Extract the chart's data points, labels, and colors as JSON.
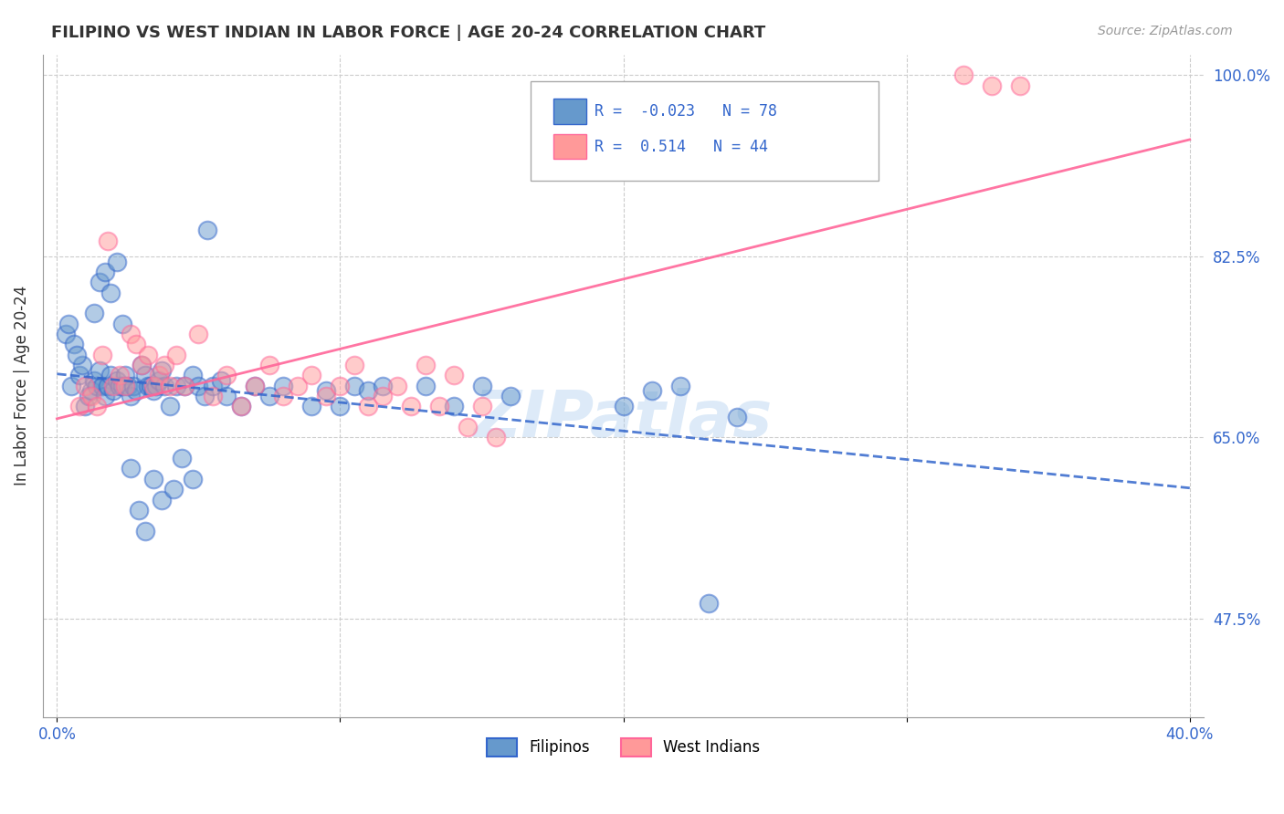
{
  "title": "FILIPINO VS WEST INDIAN IN LABOR FORCE | AGE 20-24 CORRELATION CHART",
  "source": "Source: ZipAtlas.com",
  "xlabel": "",
  "ylabel": "In Labor Force | Age 20-24",
  "xlim": [
    0.0,
    0.4
  ],
  "ylim": [
    0.38,
    1.02
  ],
  "xticks": [
    0.0,
    0.05,
    0.1,
    0.15,
    0.2,
    0.25,
    0.3,
    0.35,
    0.4
  ],
  "xticklabels": [
    "0.0%",
    "",
    "",
    "",
    "",
    "",
    "",
    "",
    "40.0%"
  ],
  "yticks_right": [
    1.0,
    0.825,
    0.65,
    0.475
  ],
  "yticklabels_right": [
    "100.0%",
    "82.5%",
    "65.0%",
    "47.5%"
  ],
  "R_filipino": -0.023,
  "N_filipino": 78,
  "R_westindian": 0.514,
  "N_westindian": 44,
  "filipino_color": "#6699CC",
  "westindian_color": "#FF9999",
  "filipino_line_color": "#3366CC",
  "westindian_line_color": "#FF6699",
  "watermark": "ZIPatlas",
  "watermark_color": "#aaccee",
  "legend_labels": [
    "Filipinos",
    "West Indians"
  ],
  "filipino_x": [
    0.005,
    0.008,
    0.009,
    0.01,
    0.011,
    0.012,
    0.013,
    0.014,
    0.015,
    0.016,
    0.017,
    0.018,
    0.019,
    0.02,
    0.021,
    0.022,
    0.023,
    0.024,
    0.025,
    0.026,
    0.027,
    0.028,
    0.03,
    0.031,
    0.032,
    0.033,
    0.034,
    0.035,
    0.036,
    0.037,
    0.038,
    0.04,
    0.042,
    0.045,
    0.048,
    0.05,
    0.052,
    0.055,
    0.058,
    0.06,
    0.065,
    0.07,
    0.075,
    0.08,
    0.09,
    0.095,
    0.1,
    0.105,
    0.11,
    0.115,
    0.003,
    0.004,
    0.006,
    0.007,
    0.013,
    0.015,
    0.017,
    0.019,
    0.021,
    0.023,
    0.026,
    0.029,
    0.031,
    0.034,
    0.037,
    0.041,
    0.044,
    0.048,
    0.053,
    0.13,
    0.14,
    0.15,
    0.16,
    0.2,
    0.21,
    0.22,
    0.23,
    0.24
  ],
  "filipino_y": [
    0.7,
    0.71,
    0.72,
    0.68,
    0.69,
    0.695,
    0.705,
    0.7,
    0.715,
    0.7,
    0.69,
    0.7,
    0.71,
    0.695,
    0.705,
    0.7,
    0.7,
    0.71,
    0.7,
    0.69,
    0.7,
    0.695,
    0.72,
    0.71,
    0.7,
    0.7,
    0.695,
    0.7,
    0.705,
    0.715,
    0.7,
    0.68,
    0.7,
    0.7,
    0.71,
    0.7,
    0.69,
    0.7,
    0.705,
    0.69,
    0.68,
    0.7,
    0.69,
    0.7,
    0.68,
    0.695,
    0.68,
    0.7,
    0.695,
    0.7,
    0.75,
    0.76,
    0.74,
    0.73,
    0.77,
    0.8,
    0.81,
    0.79,
    0.82,
    0.76,
    0.62,
    0.58,
    0.56,
    0.61,
    0.59,
    0.6,
    0.63,
    0.61,
    0.85,
    0.7,
    0.68,
    0.7,
    0.69,
    0.68,
    0.695,
    0.7,
    0.49,
    0.67
  ],
  "westindian_x": [
    0.008,
    0.01,
    0.012,
    0.014,
    0.016,
    0.018,
    0.02,
    0.022,
    0.024,
    0.026,
    0.028,
    0.03,
    0.032,
    0.034,
    0.036,
    0.038,
    0.04,
    0.042,
    0.045,
    0.05,
    0.055,
    0.06,
    0.065,
    0.07,
    0.075,
    0.08,
    0.085,
    0.09,
    0.095,
    0.1,
    0.105,
    0.11,
    0.115,
    0.12,
    0.125,
    0.13,
    0.135,
    0.14,
    0.145,
    0.15,
    0.155,
    0.32,
    0.33,
    0.34
  ],
  "westindian_y": [
    0.68,
    0.7,
    0.69,
    0.68,
    0.73,
    0.84,
    0.7,
    0.71,
    0.7,
    0.75,
    0.74,
    0.72,
    0.73,
    0.7,
    0.71,
    0.72,
    0.7,
    0.73,
    0.7,
    0.75,
    0.69,
    0.71,
    0.68,
    0.7,
    0.72,
    0.69,
    0.7,
    0.71,
    0.69,
    0.7,
    0.72,
    0.68,
    0.69,
    0.7,
    0.68,
    0.72,
    0.68,
    0.71,
    0.66,
    0.68,
    0.65,
    1.0,
    0.99,
    0.99
  ]
}
